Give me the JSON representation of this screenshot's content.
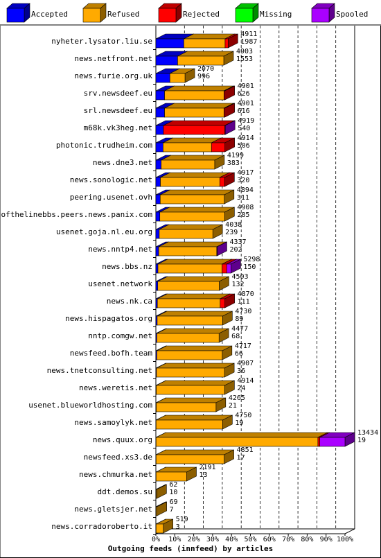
{
  "chart_data": {
    "type": "bar",
    "title": "Outgoing feeds (innfeed) by articles",
    "stacked": true,
    "orientation": "horizontal",
    "xlim": [
      0,
      100
    ],
    "ticks": [
      "0%",
      "10%",
      "20%",
      "30%",
      "40%",
      "50%",
      "60%",
      "70%",
      "80%",
      "90%",
      "100%"
    ],
    "legend_position": "top",
    "series": [
      {
        "name": "Accepted",
        "color": "#0000ff"
      },
      {
        "name": "Refused",
        "color": "#ffaa00"
      },
      {
        "name": "Rejected",
        "color": "#ff0000"
      },
      {
        "name": "Missing",
        "color": "#00ff00"
      },
      {
        "name": "Spooled",
        "color": "#aa00ff"
      }
    ],
    "rows": [
      {
        "name": "nyheter.lysator.liu.se",
        "v": [
          14.8,
          21.8,
          1.6,
          0,
          0
        ],
        "total": "4911",
        "accepted": "1987"
      },
      {
        "name": "news.netfront.net",
        "v": [
          11.5,
          24.4,
          0,
          0,
          0
        ],
        "total": "4903",
        "accepted": "1553"
      },
      {
        "name": "news.furie.org.uk",
        "v": [
          7.4,
          8.0,
          0,
          0,
          0
        ],
        "total": "2070",
        "accepted": "996"
      },
      {
        "name": "srv.newsdeef.eu",
        "v": [
          4.6,
          31.4,
          0.5,
          0,
          0
        ],
        "total": "4901",
        "accepted": "626"
      },
      {
        "name": "srl.newsdeef.eu",
        "v": [
          4.6,
          31.4,
          0.5,
          0,
          0
        ],
        "total": "4901",
        "accepted": "616"
      },
      {
        "name": "m68k.vk3heg.net",
        "v": [
          4.0,
          0,
          32.5,
          0,
          0.2
        ],
        "total": "4919",
        "accepted": "540"
      },
      {
        "name": "photonic.trudheim.com",
        "v": [
          3.8,
          25.6,
          7.1,
          0,
          0
        ],
        "total": "4914",
        "accepted": "506"
      },
      {
        "name": "news.dne3.net",
        "v": [
          2.8,
          28.3,
          0,
          0,
          0
        ],
        "total": "4199",
        "accepted": "383"
      },
      {
        "name": "news.sonologic.net",
        "v": [
          2.4,
          31.4,
          2.6,
          0,
          0
        ],
        "total": "4917",
        "accepted": "320"
      },
      {
        "name": "peering.usenet.ovh",
        "v": [
          2.3,
          33.9,
          0,
          0,
          0
        ],
        "total": "4894",
        "accepted": "311"
      },
      {
        "name": "endofthelinebbs.peers.news.panix.com",
        "v": [
          2.1,
          34.3,
          0,
          0,
          0
        ],
        "total": "4908",
        "accepted": "285"
      },
      {
        "name": "usenet.goja.nl.eu.org",
        "v": [
          1.8,
          28.3,
          0,
          0,
          0
        ],
        "total": "4038",
        "accepted": "239"
      },
      {
        "name": "news.nntp4.net",
        "v": [
          1.5,
          30.7,
          0,
          0,
          0.2
        ],
        "total": "4337",
        "accepted": "202"
      },
      {
        "name": "news.bbs.nz",
        "v": [
          1.1,
          33.9,
          2.5,
          0,
          2.2
        ],
        "total": "5298",
        "accepted": "150"
      },
      {
        "name": "usenet.network",
        "v": [
          1.0,
          32.5,
          0,
          0,
          0
        ],
        "total": "4503",
        "accepted": "132"
      },
      {
        "name": "news.nk.ca",
        "v": [
          0.8,
          33.2,
          2.5,
          0,
          0
        ],
        "total": "4870",
        "accepted": "111"
      },
      {
        "name": "news.hispagatos.org",
        "v": [
          0.7,
          34.6,
          0,
          0,
          0
        ],
        "total": "4730",
        "accepted": "89"
      },
      {
        "name": "nntp.comgw.net",
        "v": [
          0.5,
          32.9,
          0,
          0,
          0
        ],
        "total": "4477",
        "accepted": "68"
      },
      {
        "name": "newsfeed.bofh.team",
        "v": [
          0.5,
          34.6,
          0,
          0,
          0
        ],
        "total": "4717",
        "accepted": "66"
      },
      {
        "name": "news.tnetconsulting.net",
        "v": [
          0.3,
          36.0,
          0,
          0,
          0
        ],
        "total": "4907",
        "accepted": "36"
      },
      {
        "name": "news.weretis.net",
        "v": [
          0.2,
          36.2,
          0,
          0,
          0
        ],
        "total": "4914",
        "accepted": "24"
      },
      {
        "name": "usenet.blueworldhosting.com",
        "v": [
          0.2,
          31.6,
          0,
          0,
          0
        ],
        "total": "4265",
        "accepted": "21"
      },
      {
        "name": "news.samoylyk.net",
        "v": [
          0.1,
          35.2,
          0,
          0,
          0
        ],
        "total": "4750",
        "accepted": "19"
      },
      {
        "name": "news.quux.org",
        "v": [
          0.1,
          85.6,
          1.0,
          0,
          13.3
        ],
        "total": "13434",
        "accepted": "19"
      },
      {
        "name": "newsfeed.xs3.de",
        "v": [
          0.1,
          36.0,
          0,
          0,
          0
        ],
        "total": "4851",
        "accepted": "17"
      },
      {
        "name": "news.chmurka.net",
        "v": [
          0.1,
          16.2,
          0,
          0,
          0
        ],
        "total": "2191",
        "accepted": "13"
      },
      {
        "name": "ddt.demos.su",
        "v": [
          0.1,
          0.4,
          0,
          0,
          0
        ],
        "total": "62",
        "accepted": "10"
      },
      {
        "name": "news.gletsjer.net",
        "v": [
          0.1,
          0.5,
          0,
          0,
          0
        ],
        "total": "69",
        "accepted": "7"
      },
      {
        "name": "news.corradoroberto.it",
        "v": [
          0.1,
          3.8,
          0,
          0,
          0
        ],
        "total": "519",
        "accepted": "3"
      }
    ]
  }
}
